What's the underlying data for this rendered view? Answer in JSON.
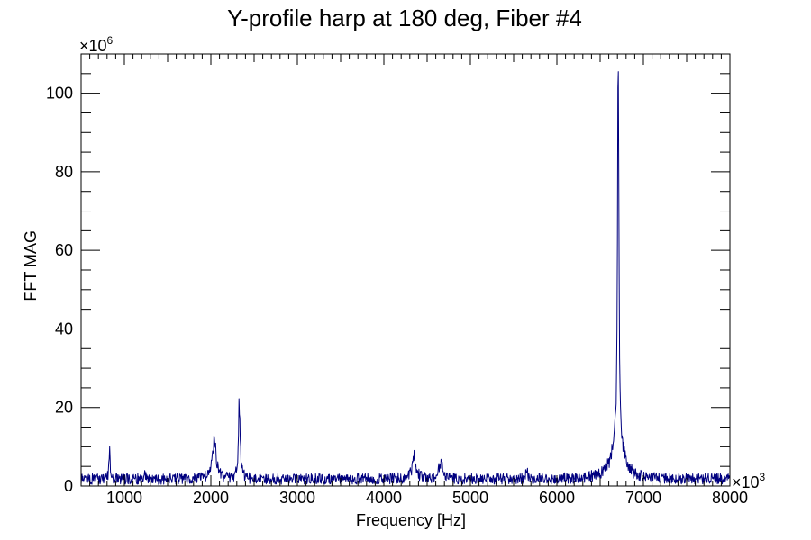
{
  "chart_data": {
    "type": "line",
    "title": "Y-profile harp at 180 deg, Fiber #4",
    "xlabel": "Frequency [Hz]",
    "ylabel": "FFT MAG",
    "x_multiplier": "×10",
    "x_multiplier_exp": "3",
    "y_multiplier": "×10",
    "y_multiplier_exp": "6",
    "xlim": [
      500,
      8000
    ],
    "ylim": [
      0,
      110
    ],
    "x_ticks": [
      1000,
      2000,
      3000,
      4000,
      5000,
      6000,
      7000,
      8000
    ],
    "y_ticks": [
      0,
      20,
      40,
      60,
      80,
      100
    ],
    "grid": false,
    "line_color": "#00007f",
    "baseline": {
      "min": 0.4,
      "max": 3.2,
      "seed": 7
    },
    "peaks": [
      {
        "center": 830,
        "height": 7.5,
        "width": 8
      },
      {
        "center": 1230,
        "height": 1.5,
        "width": 10
      },
      {
        "center": 2040,
        "height": 10.5,
        "width": 28
      },
      {
        "center": 2330,
        "height": 20.0,
        "width": 12
      },
      {
        "center": 4350,
        "height": 5.5,
        "width": 30
      },
      {
        "center": 4660,
        "height": 4.5,
        "width": 25
      },
      {
        "center": 5650,
        "height": 2.5,
        "width": 10
      },
      {
        "center": 6710,
        "height": 104.0,
        "width": 9
      },
      {
        "center": 6700,
        "height": 10.0,
        "width": 80
      }
    ],
    "highlight_point": {
      "x": 6712,
      "y": 105.5
    }
  }
}
